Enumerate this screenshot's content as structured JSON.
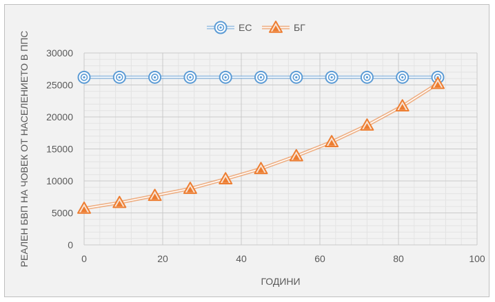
{
  "chart_data": {
    "type": "line",
    "title": "",
    "xlabel": "ГОДИНИ",
    "ylabel": "РЕАЛЕН БВП НА ЧОВЕК ОТ НАСЕЛЕНИЕТО В ППС",
    "xlim": [
      0,
      100
    ],
    "ylim": [
      0,
      30000
    ],
    "x_ticks": [
      0,
      20,
      40,
      60,
      80,
      100
    ],
    "y_ticks": [
      0,
      5000,
      10000,
      15000,
      20000,
      25000,
      30000
    ],
    "grid": true,
    "legend_position": "top",
    "x": [
      0,
      9,
      18,
      27,
      36,
      45,
      54,
      63,
      72,
      81,
      90
    ],
    "series": [
      {
        "name": "ЕС",
        "color": "#5b9bd5",
        "marker": "circle",
        "values": [
          26200,
          26200,
          26200,
          26200,
          26200,
          26200,
          26200,
          26200,
          26200,
          26200,
          26200
        ]
      },
      {
        "name": "БГ",
        "color": "#ed7d31",
        "marker": "triangle",
        "values": [
          5700,
          6600,
          7700,
          8800,
          10300,
          11900,
          13900,
          16100,
          18700,
          21700,
          25200
        ]
      }
    ]
  }
}
